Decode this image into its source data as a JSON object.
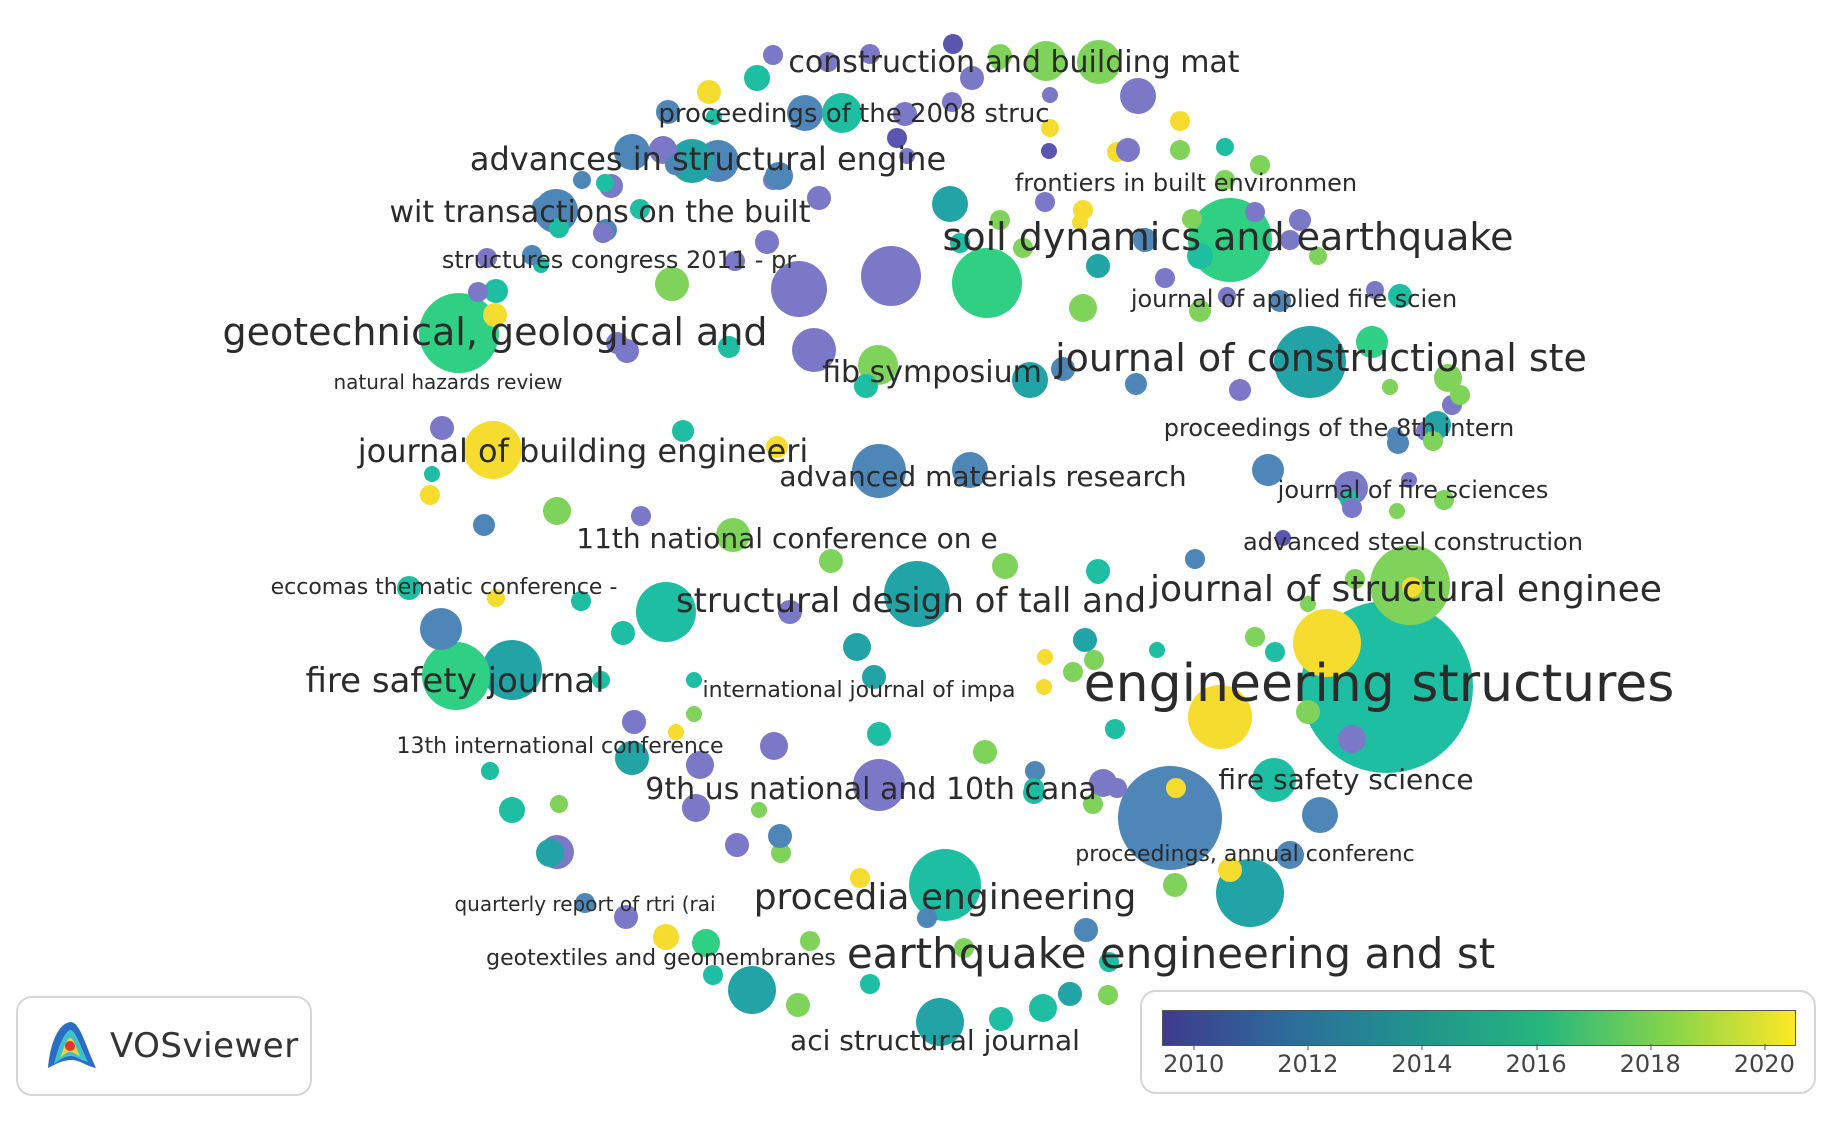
{
  "labels": [
    {
      "text": "construction and building mat",
      "size": 30
    },
    {
      "text": "proceedings of the 2008 struc",
      "size": 26
    },
    {
      "text": "advances in structural engine",
      "size": 32
    },
    {
      "text": "frontiers in built environmen",
      "size": 24
    },
    {
      "text": "wit transactions on the built",
      "size": 30
    },
    {
      "text": "soil dynamics and earthquake",
      "size": 38
    },
    {
      "text": "structures congress 2011 - pr",
      "size": 24
    },
    {
      "text": "journal of applied fire scien",
      "size": 24
    },
    {
      "text": "geotechnical, geological and",
      "size": 38
    },
    {
      "text": "natural hazards review",
      "size": 20
    },
    {
      "text": "fib symposium",
      "size": 30
    },
    {
      "text": "journal of constructional ste",
      "size": 38
    },
    {
      "text": "proceedings of the 8th intern",
      "size": 24
    },
    {
      "text": "journal of building engineeri",
      "size": 32
    },
    {
      "text": "advanced materials research",
      "size": 28
    },
    {
      "text": "journal of fire sciences",
      "size": 24
    },
    {
      "text": "11th national conference on e",
      "size": 28
    },
    {
      "text": "advanced steel construction",
      "size": 24
    },
    {
      "text": "eccomas thematic conference -",
      "size": 22
    },
    {
      "text": "structural design of tall and",
      "size": 34
    },
    {
      "text": "journal of structural enginee",
      "size": 36
    },
    {
      "text": "fire safety journal",
      "size": 34
    },
    {
      "text": "international journal of impa",
      "size": 22
    },
    {
      "text": "engineering structures",
      "size": 52
    },
    {
      "text": "13th international conference",
      "size": 22
    },
    {
      "text": "9th us national and 10th cana",
      "size": 30
    },
    {
      "text": "fire safety science",
      "size": 28
    },
    {
      "text": "proceedings, annual conferenc",
      "size": 22
    },
    {
      "text": "quarterly report of rtri (rai",
      "size": 20
    },
    {
      "text": "procedia engineering",
      "size": 36
    },
    {
      "text": "geotextiles and geomembranes",
      "size": 22
    },
    {
      "text": "earthquake engineering and st",
      "size": 42
    },
    {
      "text": "aci structural journal",
      "size": 28
    }
  ],
  "legend": {
    "ticks": [
      "2010",
      "2012",
      "2014",
      "2016",
      "2018",
      "2020"
    ],
    "colors": [
      "#3e3a8c",
      "#2d6f9a",
      "#21908c",
      "#27b77f",
      "#7fd34e",
      "#fde725"
    ]
  },
  "logo": {
    "text": "VOSviewer"
  }
}
